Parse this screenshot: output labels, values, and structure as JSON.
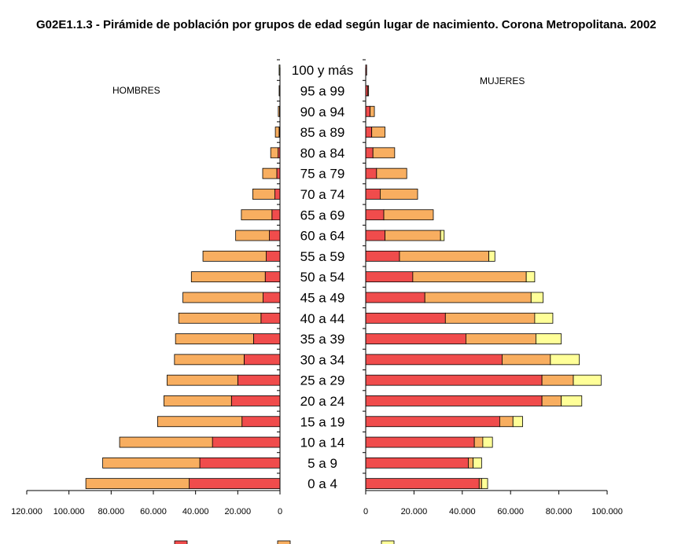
{
  "title": "G02E1.1.3 -  Pirámide de población por grupos de edad según lugar de nacimiento. Corona Metropolitana. 2002",
  "chart_data": {
    "type": "bar",
    "orientation": "horizontal",
    "layout": "population-pyramid",
    "categories": [
      "100 y más",
      "95 a 99",
      "90 a 94",
      "85 a 89",
      "80 a 84",
      "75 a 79",
      "70 a 74",
      "65 a 69",
      "60 a 64",
      "55 a 59",
      "50 a 54",
      "45 a 49",
      "40 a  44",
      "35 a 39",
      "30 a 34",
      "25 a 29",
      "20 a 24",
      "15 a 19",
      "10 a 14",
      "5 a 9",
      "0 a 4"
    ],
    "side_labels": {
      "left": "HOMBRES",
      "right": "MUJERES"
    },
    "colors": [
      "#f04c4c",
      "#f8ae60",
      "#ffff98"
    ],
    "hombres": {
      "series": [
        {
          "values": [
            0,
            100,
            200,
            400,
            900,
            1500,
            2400,
            3800,
            5000,
            6500,
            7000,
            8000,
            9000,
            12500,
            17000,
            20000,
            23000,
            18000,
            32000,
            38000,
            43000
          ]
        },
        {
          "values": [
            0,
            300,
            600,
            1800,
            3500,
            6700,
            10500,
            14500,
            16000,
            30000,
            35000,
            38000,
            39000,
            37000,
            33000,
            33500,
            32000,
            40000,
            44000,
            46000,
            49000
          ]
        },
        {
          "values": [
            400,
            0,
            0,
            0,
            0,
            0,
            0,
            0,
            0,
            0,
            0,
            0,
            0,
            0,
            0,
            0,
            0,
            0,
            0,
            0,
            0
          ]
        }
      ],
      "xlim": [
        120000,
        0
      ],
      "ticks": [
        "120.000",
        "100.000",
        "80.000",
        "60.000",
        "40.000",
        "20.000",
        "0"
      ]
    },
    "mujeres": {
      "series": [
        {
          "values": [
            400,
            900,
            1800,
            2500,
            3000,
            4500,
            6000,
            7500,
            8000,
            14000,
            19500,
            24500,
            33000,
            41500,
            56500,
            73000,
            73000,
            55500,
            45000,
            42500,
            47000
          ]
        },
        {
          "values": [
            0,
            300,
            1800,
            5500,
            9000,
            12500,
            15500,
            20500,
            23000,
            37000,
            47000,
            44000,
            37000,
            29000,
            20000,
            13000,
            8000,
            5500,
            3500,
            2000,
            1000
          ]
        },
        {
          "values": [
            0,
            0,
            0,
            0,
            0,
            0,
            0,
            0,
            1500,
            2500,
            3500,
            5000,
            7500,
            10500,
            12000,
            11500,
            8500,
            4000,
            4000,
            3500,
            2500
          ]
        }
      ],
      "xlim": [
        0,
        100000
      ],
      "ticks": [
        "0",
        "20.000",
        "40.000",
        "60.000",
        "80.000",
        "100.000"
      ]
    }
  }
}
